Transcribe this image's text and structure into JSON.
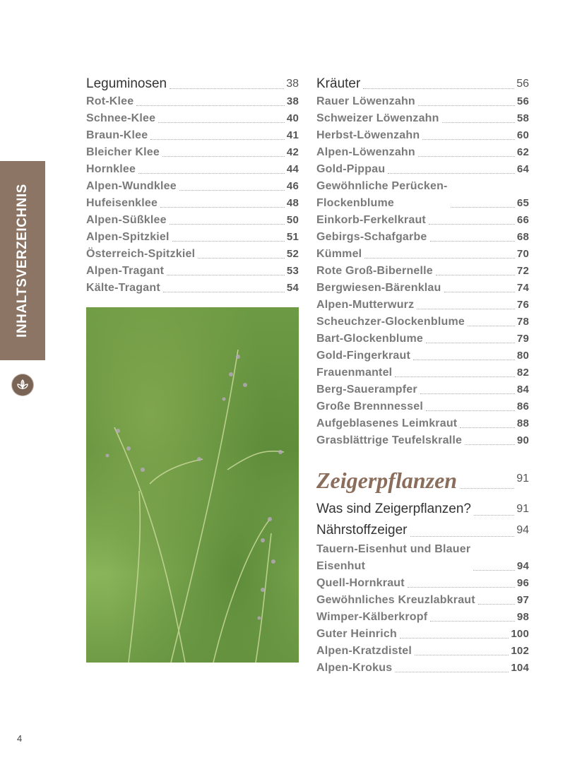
{
  "sidebar": {
    "tab_label": "INHALTSVERZEICHNIS",
    "badge_icon": "leaf-icon",
    "tab_color": "#8c7565"
  },
  "left": {
    "heading": {
      "name": "Leguminosen",
      "page": "38"
    },
    "entries": [
      {
        "name": "Rot-Klee",
        "page": "38"
      },
      {
        "name": "Schnee-Klee",
        "page": "40"
      },
      {
        "name": "Braun-Klee",
        "page": "41"
      },
      {
        "name": "Bleicher Klee",
        "page": "42"
      },
      {
        "name": "Hornklee",
        "page": "44"
      },
      {
        "name": "Alpen-Wundklee",
        "page": "46"
      },
      {
        "name": "Hufeisenklee",
        "page": "48"
      },
      {
        "name": "Alpen-Süßklee",
        "page": "50"
      },
      {
        "name": "Alpen-Spitzkiel",
        "page": "51"
      },
      {
        "name": "Österreich-Spitzkiel",
        "page": "52"
      },
      {
        "name": "Alpen-Tragant",
        "page": "53"
      },
      {
        "name": "Kälte-Tragant",
        "page": "54"
      }
    ]
  },
  "right": {
    "heading": {
      "name": "Kräuter",
      "page": "56"
    },
    "entries": [
      {
        "name": "Rauer Löwenzahn",
        "page": "56"
      },
      {
        "name": "Schweizer Löwenzahn",
        "page": "58"
      },
      {
        "name": "Herbst-Löwenzahn",
        "page": "60"
      },
      {
        "name": "Alpen-Löwenzahn",
        "page": "62"
      },
      {
        "name": "Gold-Pippau",
        "page": "64"
      },
      {
        "name": "Gewöhnliche Perücken-\nFlockenblume",
        "page": "65"
      },
      {
        "name": "Einkorb-Ferkelkraut",
        "page": "66"
      },
      {
        "name": "Gebirgs-Schafgarbe",
        "page": "68"
      },
      {
        "name": "Kümmel",
        "page": "70"
      },
      {
        "name": "Rote Groß-Bibernelle",
        "page": "72"
      },
      {
        "name": "Bergwiesen-Bärenklau",
        "page": "74"
      },
      {
        "name": "Alpen-Mutterwurz",
        "page": "76"
      },
      {
        "name": "Scheuchzer-Glockenblume",
        "page": "78"
      },
      {
        "name": "Bart-Glockenblume",
        "page": "79"
      },
      {
        "name": "Gold-Fingerkraut",
        "page": "80"
      },
      {
        "name": "Frauenmantel",
        "page": "82"
      },
      {
        "name": "Berg-Sauerampfer",
        "page": "84"
      },
      {
        "name": "Große Brennnessel",
        "page": "86"
      },
      {
        "name": "Aufgeblasenes Leimkraut",
        "page": "88"
      },
      {
        "name": "Grasblättrige Teufelskralle",
        "page": "90"
      }
    ],
    "chapter": {
      "name": "Zeigerpflanzen",
      "page": "91"
    },
    "sub1": {
      "name": "Was sind Zeigerpflanzen?",
      "page": "91"
    },
    "sub2": {
      "name": "Nährstoffzeiger",
      "page": "94"
    },
    "entries2": [
      {
        "name": "Tauern-Eisenhut und Blauer\nEisenhut",
        "page": "94"
      },
      {
        "name": "Quell-Hornkraut",
        "page": "96"
      },
      {
        "name": "Gewöhnliches Kreuzlabkraut",
        "page": "97"
      },
      {
        "name": "Wimper-Kälberkropf",
        "page": "98"
      },
      {
        "name": "Guter Heinrich",
        "page": "100"
      },
      {
        "name": "Alpen-Kratzdistel",
        "page": "102"
      },
      {
        "name": "Alpen-Krokus",
        "page": "104"
      }
    ]
  },
  "page_number": "4"
}
